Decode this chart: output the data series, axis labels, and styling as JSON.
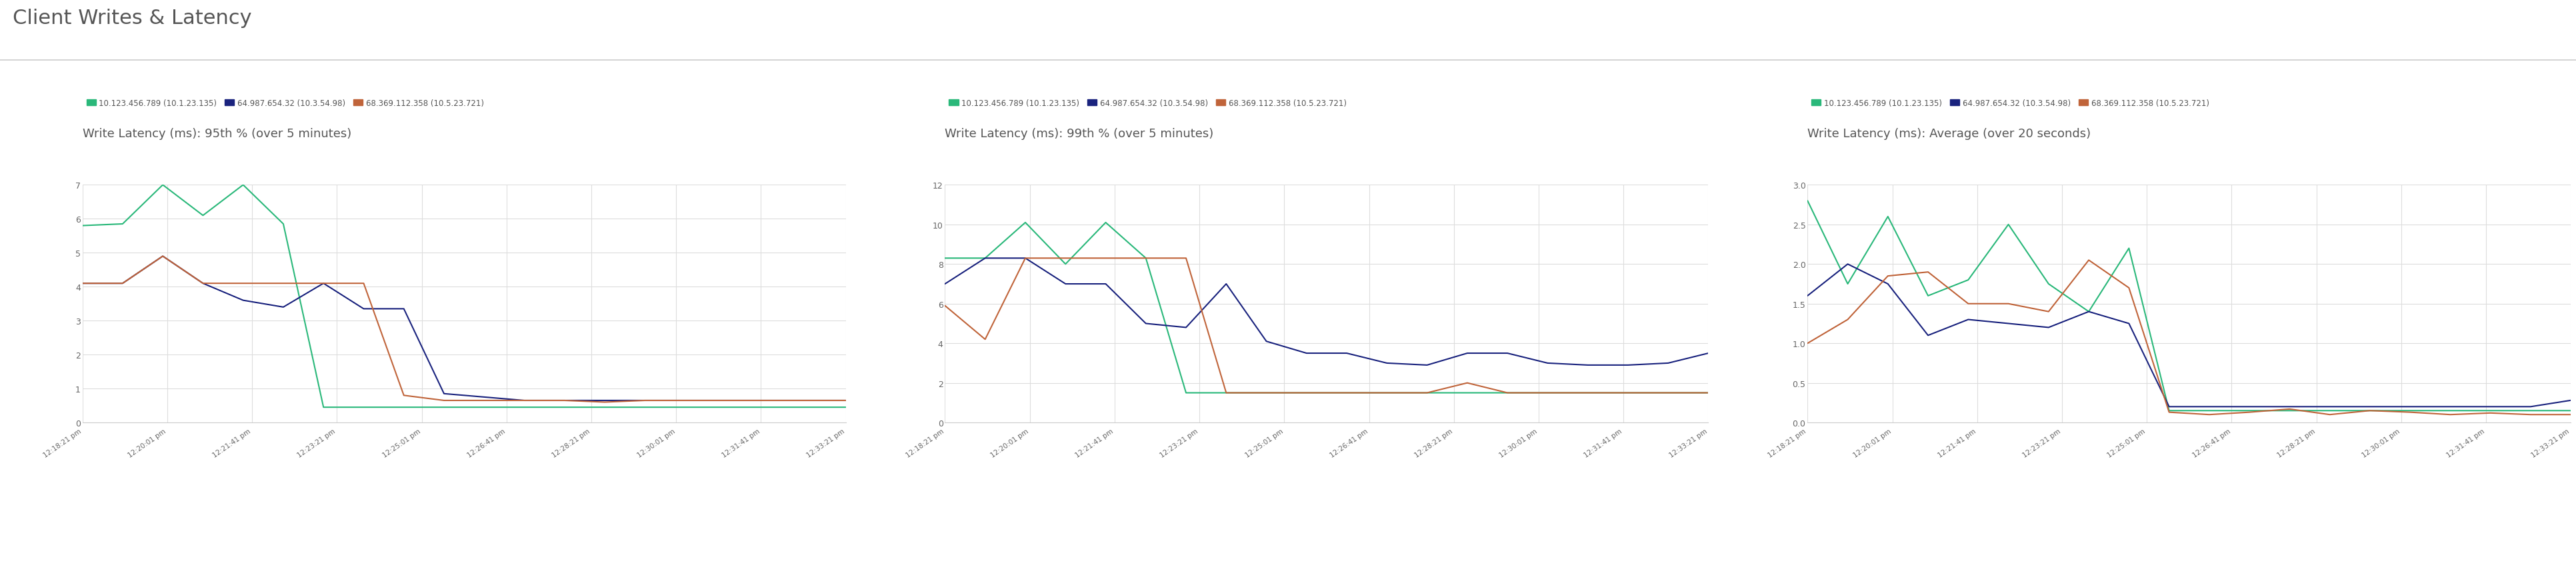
{
  "title": "Client Writes & Latency",
  "background_color": "#ffffff",
  "grid_color": "#dddddd",
  "legend_labels": [
    "10.123.456.789 (10.1.23.135)",
    "64.987.654.32 (10.3.54.98)",
    "68.369.112.358 (10.5.23.721)"
  ],
  "colors": [
    "#2ab87a",
    "#1a237e",
    "#c0643a"
  ],
  "xtick_labels": [
    "12:18:21 pm",
    "12:20:01 pm",
    "12:21:41 pm",
    "12:23:21 pm",
    "12:25:01 pm",
    "12:26:41 pm",
    "12:28:21 pm",
    "12:30:01 pm",
    "12:31:41 pm",
    "12:33:21 pm"
  ],
  "charts": [
    {
      "title": "Write Latency (ms): 95th % (over 5 minutes)",
      "ylim": [
        0,
        7
      ],
      "yticks": [
        0,
        1,
        2,
        3,
        4,
        5,
        6,
        7
      ],
      "series": [
        [
          5.8,
          5.85,
          7.0,
          6.1,
          7.0,
          5.85,
          0.45,
          0.45,
          0.45,
          0.45,
          0.45,
          0.45,
          0.45,
          0.45,
          0.45,
          0.45,
          0.45,
          0.45,
          0.45,
          0.45
        ],
        [
          4.1,
          4.1,
          4.9,
          4.1,
          3.6,
          3.4,
          4.1,
          3.35,
          3.35,
          0.85,
          0.75,
          0.65,
          0.65,
          0.65,
          0.65,
          0.65,
          0.65,
          0.65,
          0.65,
          0.65
        ],
        [
          4.1,
          4.1,
          4.9,
          4.1,
          4.1,
          4.1,
          4.1,
          4.1,
          0.8,
          0.65,
          0.65,
          0.65,
          0.65,
          0.6,
          0.65,
          0.65,
          0.65,
          0.65,
          0.65,
          0.65
        ]
      ]
    },
    {
      "title": "Write Latency (ms): 99th % (over 5 minutes)",
      "ylim": [
        0,
        12
      ],
      "yticks": [
        0,
        2,
        4,
        6,
        8,
        10,
        12
      ],
      "series": [
        [
          8.3,
          8.3,
          10.1,
          8.0,
          10.1,
          8.3,
          1.5,
          1.5,
          1.5,
          1.5,
          1.5,
          1.5,
          1.5,
          1.5,
          1.5,
          1.5,
          1.5,
          1.5,
          1.5,
          1.5
        ],
        [
          7.0,
          8.3,
          8.3,
          7.0,
          7.0,
          5.0,
          4.8,
          7.0,
          4.1,
          3.5,
          3.5,
          3.0,
          2.9,
          3.5,
          3.5,
          3.0,
          2.9,
          2.9,
          3.0,
          3.5
        ],
        [
          5.9,
          4.2,
          8.3,
          8.3,
          8.3,
          8.3,
          8.3,
          1.5,
          1.5,
          1.5,
          1.5,
          1.5,
          1.5,
          2.0,
          1.5,
          1.5,
          1.5,
          1.5,
          1.5,
          1.5
        ]
      ]
    },
    {
      "title": "Write Latency (ms): Average (over 20 seconds)",
      "ylim": [
        0,
        3.0
      ],
      "yticks": [
        0,
        0.5,
        1.0,
        1.5,
        2.0,
        2.5,
        3.0
      ],
      "series": [
        [
          2.8,
          1.75,
          2.6,
          1.6,
          1.8,
          2.5,
          1.75,
          1.4,
          2.2,
          0.15,
          0.15,
          0.15,
          0.15,
          0.15,
          0.15,
          0.15,
          0.15,
          0.15,
          0.15,
          0.15
        ],
        [
          1.6,
          2.0,
          1.75,
          1.1,
          1.3,
          1.25,
          1.2,
          1.4,
          1.25,
          0.2,
          0.2,
          0.2,
          0.2,
          0.2,
          0.2,
          0.2,
          0.2,
          0.2,
          0.2,
          0.28
        ],
        [
          1.0,
          1.3,
          1.85,
          1.9,
          1.5,
          1.5,
          1.4,
          2.05,
          1.7,
          0.13,
          0.1,
          0.13,
          0.17,
          0.1,
          0.15,
          0.13,
          0.1,
          0.12,
          0.1,
          0.1
        ]
      ]
    }
  ]
}
